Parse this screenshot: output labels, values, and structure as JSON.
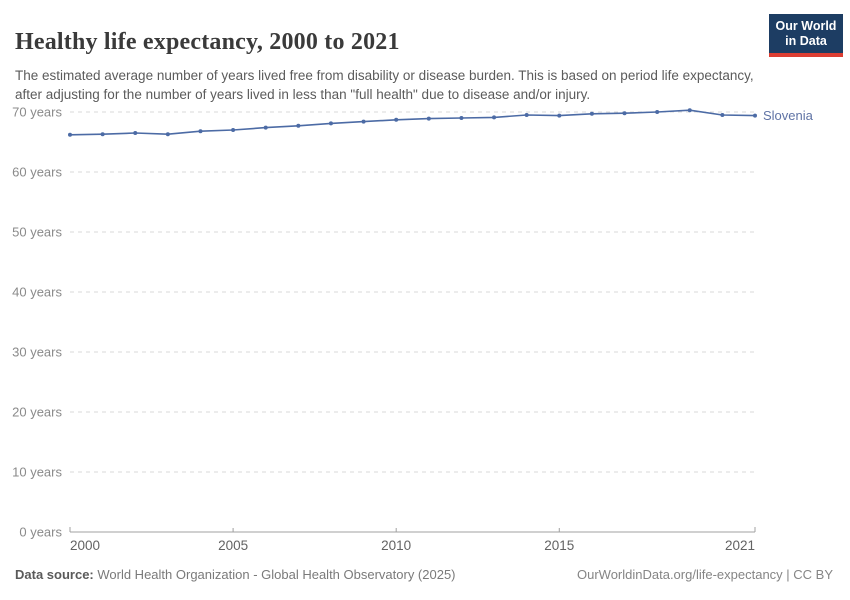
{
  "header": {
    "title": "Healthy life expectancy, 2000 to 2021",
    "subtitle": "The estimated average number of years lived free from disability or disease burden. This is based on period life expectancy, after adjusting for the number of years lived in less than \"full health\" due to disease and/or injury.",
    "logo": {
      "line1": "Our World",
      "line2": "in Data",
      "bg_color": "#1d3d63",
      "accent_color": "#dc3e33"
    }
  },
  "chart_data": {
    "type": "line",
    "title": "Healthy life expectancy, 2000 to 2021",
    "x": [
      2000,
      2001,
      2002,
      2003,
      2004,
      2005,
      2006,
      2007,
      2008,
      2009,
      2010,
      2011,
      2012,
      2013,
      2014,
      2015,
      2016,
      2017,
      2018,
      2019,
      2020,
      2021
    ],
    "series": [
      {
        "name": "Slovenia",
        "color": "#4c6ba5",
        "label_color": "#5f73a5",
        "values": [
          66.2,
          66.3,
          66.5,
          66.3,
          66.8,
          67.0,
          67.4,
          67.7,
          68.1,
          68.4,
          68.7,
          68.9,
          69.0,
          69.1,
          69.5,
          69.4,
          69.7,
          69.8,
          70.0,
          70.3,
          69.5,
          69.4
        ]
      }
    ],
    "xlabel": "",
    "ylabel": "",
    "xlim": [
      2000,
      2021
    ],
    "ylim": [
      0,
      70
    ],
    "yticks": [
      {
        "value": 0,
        "label": "0 years"
      },
      {
        "value": 10,
        "label": "10 years"
      },
      {
        "value": 20,
        "label": "20 years"
      },
      {
        "value": 30,
        "label": "30 years"
      },
      {
        "value": 40,
        "label": "40 years"
      },
      {
        "value": 50,
        "label": "50 years"
      },
      {
        "value": 60,
        "label": "60 years"
      },
      {
        "value": 70,
        "label": "70 years"
      }
    ],
    "xticks": [
      {
        "value": 2000,
        "label": "2000"
      },
      {
        "value": 2005,
        "label": "2005"
      },
      {
        "value": 2010,
        "label": "2010"
      },
      {
        "value": 2015,
        "label": "2015"
      },
      {
        "value": 2021,
        "label": "2021"
      }
    ],
    "grid": "horizontal-dashed",
    "legend_position": "end-of-line-label"
  },
  "footer": {
    "datasource_label": "Data source:",
    "datasource_value": " World Health Organization - Global Health Observatory (2025)",
    "credit": "OurWorldinData.org/life-expectancy | CC BY"
  }
}
